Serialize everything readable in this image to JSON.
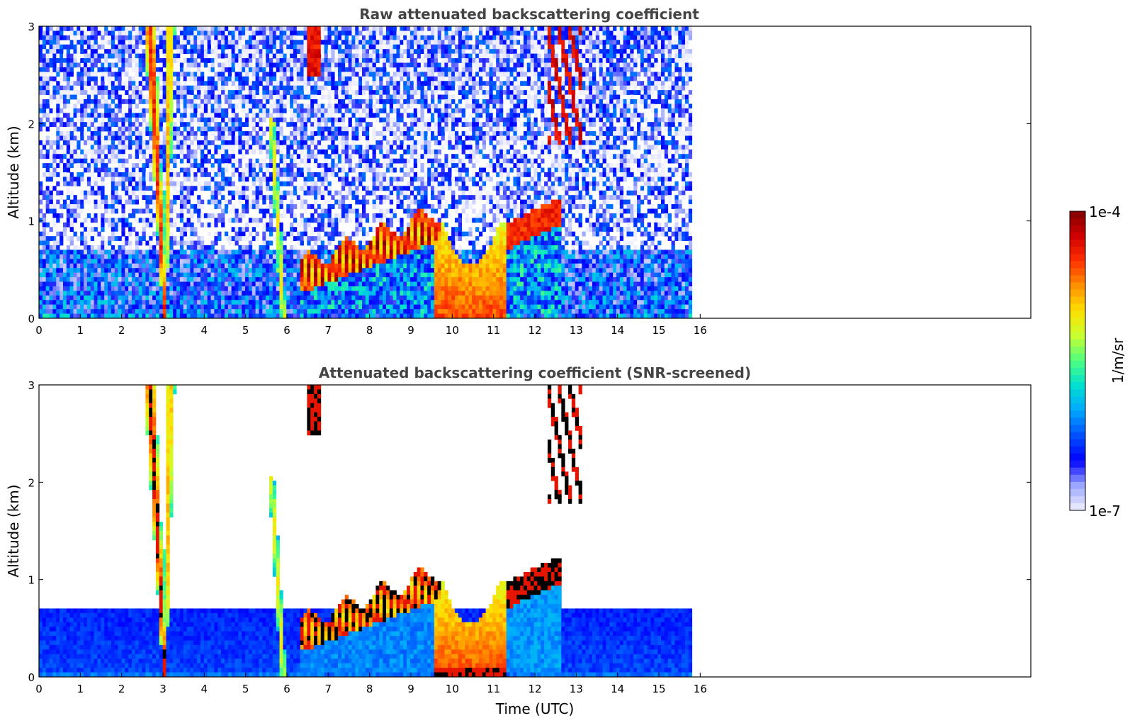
{
  "colors": {
    "title": "#444444",
    "colormap": [
      "#f0f0ff",
      "#9aa6ff",
      "#0000ff",
      "#0050ff",
      "#00a8ff",
      "#00e0d0",
      "#4dff80",
      "#c8ff30",
      "#ffe000",
      "#ff9000",
      "#ff3000",
      "#d00000",
      "#800000"
    ],
    "clipped": "#000000"
  },
  "chart_data": [
    {
      "type": "heatmap",
      "title": "Raw attenuated backscattering coefficient",
      "xlabel": "",
      "ylabel": "Altitude (km)",
      "xlim": [
        0,
        24
      ],
      "ylim": [
        0,
        3
      ],
      "xticks": [
        "0",
        "1",
        "2",
        "3",
        "4",
        "5",
        "6",
        "7",
        "8",
        "9",
        "10",
        "11",
        "12",
        "13",
        "14",
        "15",
        "16"
      ],
      "yticks": [
        "0",
        "1",
        "2",
        "3"
      ],
      "data_end_time": 15.8,
      "features": [
        {
          "kind": "boundary-layer noise",
          "t": [
            0,
            15.8
          ],
          "z": [
            0,
            0.7
          ],
          "level": "low"
        },
        {
          "kind": "plume",
          "t_top": [
            2.5,
            3.2
          ],
          "t_bottom": [
            3.05
          ],
          "z": [
            0,
            3
          ],
          "level": "high"
        },
        {
          "kind": "plume",
          "t_top": [
            5.6
          ],
          "t_bottom": [
            5.9
          ],
          "z": [
            0,
            2.0
          ],
          "level": "medium"
        },
        {
          "kind": "cloud layer",
          "t": [
            6.3,
            9.7
          ],
          "z": [
            0.25,
            1.15
          ],
          "level": "very high"
        },
        {
          "kind": "aerosol column",
          "t": [
            9.6,
            11.3
          ],
          "z": [
            0,
            1.0
          ],
          "level": "high"
        },
        {
          "kind": "cloud layer",
          "t": [
            11.3,
            12.6
          ],
          "z": [
            0.7,
            1.2
          ],
          "level": "very high"
        },
        {
          "kind": "cloud fragments",
          "t": [
            12.0,
            13.2
          ],
          "z": [
            1.8,
            3.0
          ],
          "level": "very high"
        },
        {
          "kind": "cloud fragments",
          "t": [
            6.5,
            6.8
          ],
          "z": [
            2.5,
            3.0
          ],
          "level": "very high"
        }
      ]
    },
    {
      "type": "heatmap",
      "title": "Attenuated backscattering coefficient (SNR-screened)",
      "xlabel": "Time (UTC)",
      "ylabel": "Altitude (km)",
      "xlim": [
        0,
        24
      ],
      "ylim": [
        0,
        3
      ],
      "xticks": [
        "0",
        "1",
        "2",
        "3",
        "4",
        "5",
        "6",
        "7",
        "8",
        "9",
        "10",
        "11",
        "12",
        "13",
        "14",
        "15",
        "16"
      ],
      "yticks": [
        "0",
        "1",
        "2",
        "3"
      ],
      "data_end_time": 15.8,
      "features": [
        {
          "kind": "boundary layer",
          "t": [
            0,
            15.8
          ],
          "z": [
            0,
            0.75
          ],
          "level": "low"
        },
        {
          "kind": "plume",
          "t": [
            2.5,
            3.2
          ],
          "z": [
            0,
            3
          ],
          "level": "high"
        },
        {
          "kind": "plume",
          "t": [
            5.6,
            5.9
          ],
          "z": [
            0,
            2.0
          ],
          "level": "medium"
        },
        {
          "kind": "cloud layer",
          "t": [
            6.3,
            9.7
          ],
          "z": [
            0.25,
            1.15
          ],
          "level": "clipped"
        },
        {
          "kind": "aerosol column",
          "t": [
            9.6,
            11.3
          ],
          "z": [
            0,
            1.0
          ],
          "level": "high"
        },
        {
          "kind": "cloud layer",
          "t": [
            11.3,
            12.6
          ],
          "z": [
            0.7,
            1.2
          ],
          "level": "clipped"
        }
      ]
    }
  ],
  "colorbar": {
    "label": "1/m/sr",
    "max_label": "1e-4",
    "min_label": "1e-7",
    "scale": "log"
  }
}
